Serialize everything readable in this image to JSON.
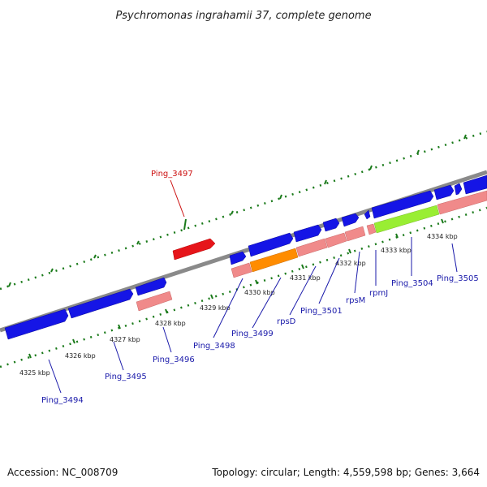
{
  "title": "Psychromonas ingrahamii 37, complete genome",
  "footer": {
    "accession": "Accession: NC_008709",
    "summary": "Topology: circular; Length: 4,559,598 bp; Genes: 3,664"
  },
  "colors": {
    "backbone": "#8a8a8a",
    "cds_forward": "#1515e6",
    "cds_reverse": "#e6151a",
    "rna_pink": "#f08a8a",
    "rna_orange": "#ff8c00",
    "rna_green": "#99ee33",
    "tick": "#1a7a1a",
    "label_blue": "#1a1aaa",
    "label_red": "#cc1111"
  },
  "axis_labels": [
    "4325 kbp",
    "4326 kbp",
    "4327 kbp",
    "4328 kbp",
    "4329 kbp",
    "4330 kbp",
    "4331 kbp",
    "4332 kbp",
    "4333 kbp",
    "4334 kbp"
  ],
  "gene_labels": [
    "Ping_3494",
    "Ping_3495",
    "Ping_3496",
    "Ping_3497",
    "Ping_3498",
    "Ping_3499",
    "rpsD",
    "Ping_3501",
    "rpsM",
    "rpmJ",
    "Ping_3504",
    "Ping_3505"
  ]
}
